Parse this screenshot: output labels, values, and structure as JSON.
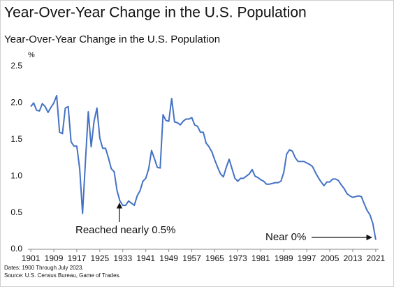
{
  "chart_data": {
    "type": "line",
    "title": "Year-Over-Year Change in the U.S. Population",
    "subtitle": "Year-Over-Year Change in the U.S. Population",
    "y_unit_label": "%",
    "x": [
      1901,
      1902,
      1903,
      1904,
      1905,
      1906,
      1907,
      1908,
      1909,
      1910,
      1911,
      1912,
      1913,
      1914,
      1915,
      1916,
      1917,
      1918,
      1919,
      1920,
      1921,
      1922,
      1923,
      1924,
      1925,
      1926,
      1927,
      1928,
      1929,
      1930,
      1931,
      1932,
      1933,
      1934,
      1935,
      1936,
      1937,
      1938,
      1939,
      1940,
      1941,
      1942,
      1943,
      1944,
      1945,
      1946,
      1947,
      1948,
      1949,
      1950,
      1951,
      1952,
      1953,
      1954,
      1955,
      1956,
      1957,
      1958,
      1959,
      1960,
      1961,
      1962,
      1963,
      1964,
      1965,
      1966,
      1967,
      1968,
      1969,
      1970,
      1971,
      1972,
      1973,
      1974,
      1975,
      1976,
      1977,
      1978,
      1979,
      1980,
      1981,
      1982,
      1983,
      1984,
      1985,
      1986,
      1987,
      1988,
      1989,
      1990,
      1991,
      1992,
      1993,
      1994,
      1995,
      1996,
      1997,
      1998,
      1999,
      2000,
      2001,
      2002,
      2003,
      2004,
      2005,
      2006,
      2007,
      2008,
      2009,
      2010,
      2011,
      2012,
      2013,
      2014,
      2015,
      2016,
      2017,
      2018,
      2019,
      2020,
      2021
    ],
    "series": [
      {
        "name": "Year-Over-Year Change",
        "color": "#4472c4",
        "values": [
          1.95,
          2.0,
          1.9,
          1.89,
          1.99,
          1.95,
          1.87,
          1.94,
          2.0,
          2.1,
          1.6,
          1.58,
          1.93,
          1.95,
          1.47,
          1.41,
          1.41,
          1.1,
          0.49,
          1.2,
          1.88,
          1.4,
          1.75,
          1.93,
          1.52,
          1.38,
          1.38,
          1.25,
          1.1,
          1.06,
          0.8,
          0.66,
          0.6,
          0.6,
          0.66,
          0.63,
          0.6,
          0.73,
          0.8,
          0.93,
          0.97,
          1.1,
          1.35,
          1.24,
          1.12,
          1.11,
          1.84,
          1.76,
          1.75,
          2.06,
          1.74,
          1.73,
          1.7,
          1.75,
          1.78,
          1.78,
          1.8,
          1.7,
          1.68,
          1.6,
          1.6,
          1.45,
          1.4,
          1.33,
          1.22,
          1.12,
          1.03,
          0.99,
          1.12,
          1.23,
          1.1,
          0.97,
          0.93,
          0.97,
          0.97,
          1.0,
          1.03,
          1.09,
          1.0,
          0.98,
          0.95,
          0.93,
          0.89,
          0.89,
          0.9,
          0.91,
          0.91,
          0.93,
          1.05,
          1.3,
          1.36,
          1.34,
          1.25,
          1.2,
          1.2,
          1.2,
          1.18,
          1.16,
          1.13,
          1.05,
          0.98,
          0.92,
          0.87,
          0.92,
          0.92,
          0.96,
          0.96,
          0.94,
          0.88,
          0.83,
          0.76,
          0.73,
          0.71,
          0.72,
          0.73,
          0.72,
          0.62,
          0.53,
          0.47,
          0.35,
          0.13
        ]
      }
    ],
    "xlim": [
      1900,
      2022
    ],
    "xticks": [
      1901,
      1909,
      1917,
      1925,
      1933,
      1941,
      1949,
      1957,
      1965,
      1973,
      1981,
      1989,
      1997,
      2005,
      2013,
      2021
    ],
    "ylim": [
      0,
      2.5
    ],
    "yticks": [
      {
        "value": 0,
        "label": "0.0"
      },
      {
        "value": 0.5,
        "label": "0.5"
      },
      {
        "value": 1,
        "label": "1.0"
      },
      {
        "value": 1.5,
        "label": "1.5"
      },
      {
        "value": 2,
        "label": "2.0"
      },
      {
        "value": 2.5,
        "label": "2.5"
      }
    ],
    "grid": false,
    "annotations": [
      {
        "text": "Reached nearly 0.5%"
      },
      {
        "text": "Near 0%"
      }
    ],
    "notes": [
      "Dates: 1900 Through July 2023.",
      "Source: U.S. Census Bureau, Game of Trades."
    ]
  }
}
